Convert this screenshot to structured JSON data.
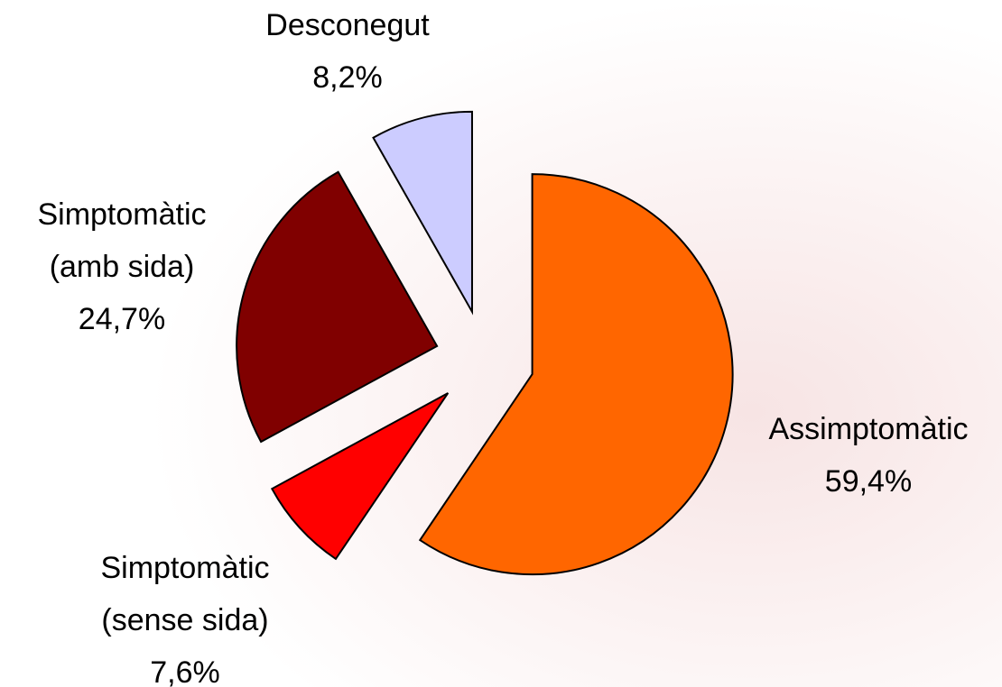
{
  "chart_data": {
    "type": "pie",
    "categories": [
      "Assimptomàtic",
      "Simptomàtic (sense sida)",
      "Simptomàtic (amb sida)",
      "Desconegut"
    ],
    "values": [
      59.4,
      7.6,
      24.7,
      8.2
    ],
    "value_labels": [
      "59,4%",
      "7,6%",
      "24,7%",
      "8,2%"
    ],
    "colors": [
      "#ff6600",
      "#ff0000",
      "#800000",
      "#ccccff"
    ],
    "exploded": true
  }
}
